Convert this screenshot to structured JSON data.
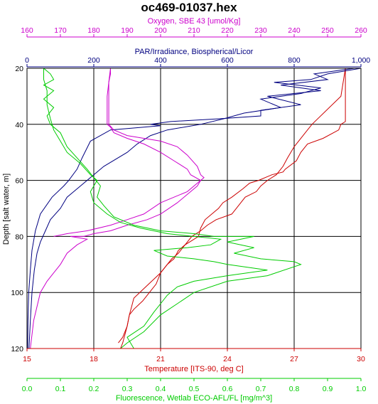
{
  "chart_data": {
    "type": "line",
    "title": "oc469-01037.hex",
    "y_axis": {
      "label": "Depth [salt water, m]",
      "ticks": [
        "20",
        "40",
        "60",
        "80",
        "100",
        "120"
      ],
      "range": [
        20,
        120
      ],
      "inverted": true
    },
    "x_axes": [
      {
        "id": "oxygen",
        "label": "Oxygen, SBE 43 [umol/Kg]",
        "position": "top-outer",
        "color": "#cc00cc",
        "range": [
          160,
          260
        ],
        "ticks": [
          "160",
          "170",
          "180",
          "190",
          "200",
          "210",
          "220",
          "230",
          "240",
          "250",
          "260"
        ]
      },
      {
        "id": "par",
        "label": "PAR/Irradiance, Biospherical/Licor",
        "position": "top-inner",
        "color": "#000080",
        "range": [
          0,
          1000
        ],
        "ticks": [
          "0",
          "200",
          "400",
          "600",
          "800",
          "1,000"
        ]
      },
      {
        "id": "temperature",
        "label": "Temperature [ITS-90, deg C]",
        "position": "bottom-inner",
        "color": "#cc0000",
        "range": [
          15,
          30
        ],
        "ticks": [
          "15",
          "18",
          "21",
          "24",
          "27",
          "30"
        ]
      },
      {
        "id": "fluorescence",
        "label": "Fluorescence, Wetlab ECO-AFL/FL [mg/m^3]",
        "position": "bottom-outer",
        "color": "#00cc00",
        "range": [
          0,
          1
        ],
        "ticks": [
          "0.0",
          "0.1",
          "0.2",
          "0.3",
          "0.4",
          "0.5",
          "0.6",
          "0.7",
          "0.8",
          "0.9",
          "1.0"
        ]
      }
    ],
    "grid": true,
    "series": [
      {
        "axis": "temperature",
        "color": "#cc0000",
        "downcast": [
          [
            29.3,
            20
          ],
          [
            29.3,
            39
          ],
          [
            29.1,
            40
          ],
          [
            29.0,
            42
          ],
          [
            28.3,
            45
          ],
          [
            27.6,
            47
          ],
          [
            27.3,
            50
          ],
          [
            27.1,
            53
          ],
          [
            26.6,
            56
          ],
          [
            26.5,
            57
          ],
          [
            26.0,
            58
          ],
          [
            25.4,
            60
          ],
          [
            25.0,
            61
          ],
          [
            24.7,
            63
          ],
          [
            24.2,
            66
          ],
          [
            23.8,
            68
          ],
          [
            23.6,
            70
          ],
          [
            23.0,
            74
          ],
          [
            22.8,
            77
          ],
          [
            22.7,
            80
          ],
          [
            22.3,
            82
          ],
          [
            22.1,
            83
          ],
          [
            21.8,
            85
          ],
          [
            21.6,
            88
          ],
          [
            21.3,
            90
          ],
          [
            21.0,
            93
          ],
          [
            20.8,
            97
          ],
          [
            20.5,
            100
          ],
          [
            20.2,
            103
          ],
          [
            19.8,
            106
          ],
          [
            19.6,
            108
          ],
          [
            19.5,
            112
          ],
          [
            19.3,
            116
          ],
          [
            19.1,
            118
          ]
        ],
        "upcast": [
          [
            29.3,
            20
          ],
          [
            29.1,
            30
          ],
          [
            27.8,
            40
          ],
          [
            27.5,
            43
          ],
          [
            27.2,
            46
          ],
          [
            27.0,
            48
          ],
          [
            26.7,
            52
          ],
          [
            26.5,
            55
          ],
          [
            26.2,
            58
          ],
          [
            25.8,
            60
          ],
          [
            25.5,
            62
          ],
          [
            25.3,
            64
          ],
          [
            24.8,
            66
          ],
          [
            24.5,
            69
          ],
          [
            24.2,
            72
          ],
          [
            23.5,
            74
          ],
          [
            23.1,
            76
          ],
          [
            22.8,
            78
          ],
          [
            22.4,
            80
          ],
          [
            22.0,
            84
          ],
          [
            21.8,
            86
          ],
          [
            21.5,
            88
          ],
          [
            21.3,
            90
          ],
          [
            21.0,
            93
          ],
          [
            20.6,
            96
          ],
          [
            20.2,
            99
          ],
          [
            19.8,
            102
          ],
          [
            19.7,
            105
          ],
          [
            19.6,
            108
          ],
          [
            19.5,
            112
          ],
          [
            19.4,
            115
          ],
          [
            19.3,
            118
          ],
          [
            19.2,
            120
          ]
        ]
      },
      {
        "axis": "par",
        "color": "#000080",
        "downcast": [
          [
            980,
            20
          ],
          [
            860,
            22
          ],
          [
            900,
            24
          ],
          [
            760,
            26
          ],
          [
            880,
            28
          ],
          [
            720,
            30
          ],
          [
            820,
            33
          ],
          [
            700,
            35
          ],
          [
            700,
            37
          ],
          [
            580,
            38
          ],
          [
            430,
            39
          ],
          [
            370,
            40
          ],
          [
            400,
            40.5
          ],
          [
            250,
            42
          ],
          [
            190,
            46
          ],
          [
            165,
            52
          ],
          [
            150,
            56
          ],
          [
            125,
            60
          ],
          [
            110,
            62
          ],
          [
            75,
            66
          ],
          [
            40,
            72
          ],
          [
            25,
            78
          ],
          [
            15,
            85
          ],
          [
            10,
            92
          ],
          [
            5,
            100
          ],
          [
            3,
            110
          ],
          [
            2,
            120
          ]
        ],
        "upcast": [
          [
            1000,
            20
          ],
          [
            900,
            22
          ],
          [
            850,
            24
          ],
          [
            740,
            25
          ],
          [
            880,
            27
          ],
          [
            820,
            29
          ],
          [
            700,
            31
          ],
          [
            760,
            34
          ],
          [
            650,
            36
          ],
          [
            590,
            38
          ],
          [
            520,
            40
          ],
          [
            420,
            42
          ],
          [
            370,
            44
          ],
          [
            330,
            47
          ],
          [
            300,
            50
          ],
          [
            230,
            55
          ],
          [
            200,
            58
          ],
          [
            160,
            62
          ],
          [
            140,
            64
          ],
          [
            120,
            66
          ],
          [
            100,
            70
          ],
          [
            70,
            74
          ],
          [
            55,
            78
          ],
          [
            40,
            82
          ],
          [
            30,
            86
          ],
          [
            22,
            92
          ],
          [
            15,
            100
          ],
          [
            10,
            110
          ],
          [
            6,
            120
          ]
        ]
      },
      {
        "axis": "oxygen",
        "color": "#cc00cc",
        "downcast": [
          [
            185,
            20
          ],
          [
            185,
            22
          ],
          [
            184.5,
            25
          ],
          [
            184,
            30
          ],
          [
            184,
            35
          ],
          [
            184,
            40
          ],
          [
            185,
            41
          ],
          [
            186,
            43
          ],
          [
            190,
            45
          ],
          [
            195,
            47
          ],
          [
            200,
            50
          ],
          [
            204,
            53
          ],
          [
            208,
            56
          ],
          [
            209,
            58
          ],
          [
            212,
            60
          ],
          [
            211,
            62
          ],
          [
            209,
            64
          ],
          [
            205,
            68
          ],
          [
            200,
            72
          ],
          [
            196,
            74
          ],
          [
            190,
            76
          ],
          [
            185,
            78
          ],
          [
            180,
            79
          ],
          [
            177,
            80
          ],
          [
            173,
            80
          ],
          [
            178,
            81
          ],
          [
            175,
            83
          ],
          [
            172,
            86
          ],
          [
            170,
            90
          ],
          [
            168,
            93
          ],
          [
            166,
            96
          ],
          [
            164,
            100
          ],
          [
            162,
            110
          ],
          [
            161,
            120
          ]
        ],
        "upcast": [
          [
            185,
            20
          ],
          [
            184.5,
            25
          ],
          [
            184.5,
            30
          ],
          [
            184.5,
            35
          ],
          [
            184.5,
            40
          ],
          [
            186,
            42
          ],
          [
            190,
            44
          ],
          [
            195,
            45
          ],
          [
            200,
            46
          ],
          [
            205,
            48
          ],
          [
            208,
            51
          ],
          [
            211,
            55
          ],
          [
            212,
            58
          ],
          [
            213,
            59
          ],
          [
            212,
            60
          ],
          [
            208,
            64
          ],
          [
            200,
            68
          ],
          [
            195,
            72
          ],
          [
            190,
            74
          ],
          [
            185,
            76
          ],
          [
            178,
            78
          ],
          [
            172,
            79
          ],
          [
            168,
            80
          ]
        ]
      },
      {
        "axis": "fluorescence",
        "color": "#00cc00",
        "downcast": [
          [
            0.05,
            20
          ],
          [
            0.07,
            22
          ],
          [
            0.08,
            24
          ],
          [
            0.05,
            26
          ],
          [
            0.08,
            28
          ],
          [
            0.05,
            31
          ],
          [
            0.08,
            34
          ],
          [
            0.06,
            37
          ],
          [
            0.07,
            40
          ],
          [
            0.1,
            43
          ],
          [
            0.12,
            48
          ],
          [
            0.15,
            52
          ],
          [
            0.18,
            56
          ],
          [
            0.2,
            59
          ],
          [
            0.22,
            62
          ],
          [
            0.21,
            66
          ],
          [
            0.23,
            69
          ],
          [
            0.26,
            73
          ],
          [
            0.32,
            76
          ],
          [
            0.4,
            78
          ],
          [
            0.5,
            79
          ],
          [
            0.56,
            80
          ],
          [
            0.68,
            80
          ],
          [
            0.6,
            82
          ],
          [
            0.68,
            84
          ],
          [
            0.62,
            86
          ],
          [
            0.7,
            88
          ],
          [
            0.8,
            89
          ],
          [
            0.82,
            90
          ],
          [
            0.72,
            94
          ],
          [
            0.6,
            96
          ],
          [
            0.5,
            100
          ],
          [
            0.45,
            104
          ],
          [
            0.4,
            108
          ],
          [
            0.35,
            114
          ],
          [
            0.3,
            118
          ],
          [
            0.28,
            120
          ]
        ],
        "upcast": [
          [
            0.05,
            20
          ],
          [
            0.05,
            24
          ],
          [
            0.06,
            28
          ],
          [
            0.06,
            33
          ],
          [
            0.07,
            38
          ],
          [
            0.08,
            42
          ],
          [
            0.1,
            46
          ],
          [
            0.12,
            50
          ],
          [
            0.16,
            54
          ],
          [
            0.19,
            58
          ],
          [
            0.21,
            60
          ],
          [
            0.2,
            62
          ],
          [
            0.19,
            64
          ],
          [
            0.2,
            68
          ],
          [
            0.24,
            72
          ],
          [
            0.28,
            75
          ],
          [
            0.34,
            77
          ],
          [
            0.42,
            79
          ],
          [
            0.5,
            80
          ],
          [
            0.58,
            81
          ],
          [
            0.55,
            83
          ],
          [
            0.48,
            84
          ],
          [
            0.38,
            85
          ],
          [
            0.42,
            87
          ],
          [
            0.5,
            88
          ],
          [
            0.56,
            89
          ],
          [
            0.6,
            90
          ],
          [
            0.72,
            92
          ],
          [
            0.6,
            94
          ],
          [
            0.5,
            96
          ],
          [
            0.45,
            98
          ],
          [
            0.42,
            101
          ],
          [
            0.4,
            104
          ],
          [
            0.38,
            107
          ],
          [
            0.35,
            112
          ],
          [
            0.3,
            116
          ],
          [
            0.32,
            120
          ]
        ]
      }
    ]
  }
}
